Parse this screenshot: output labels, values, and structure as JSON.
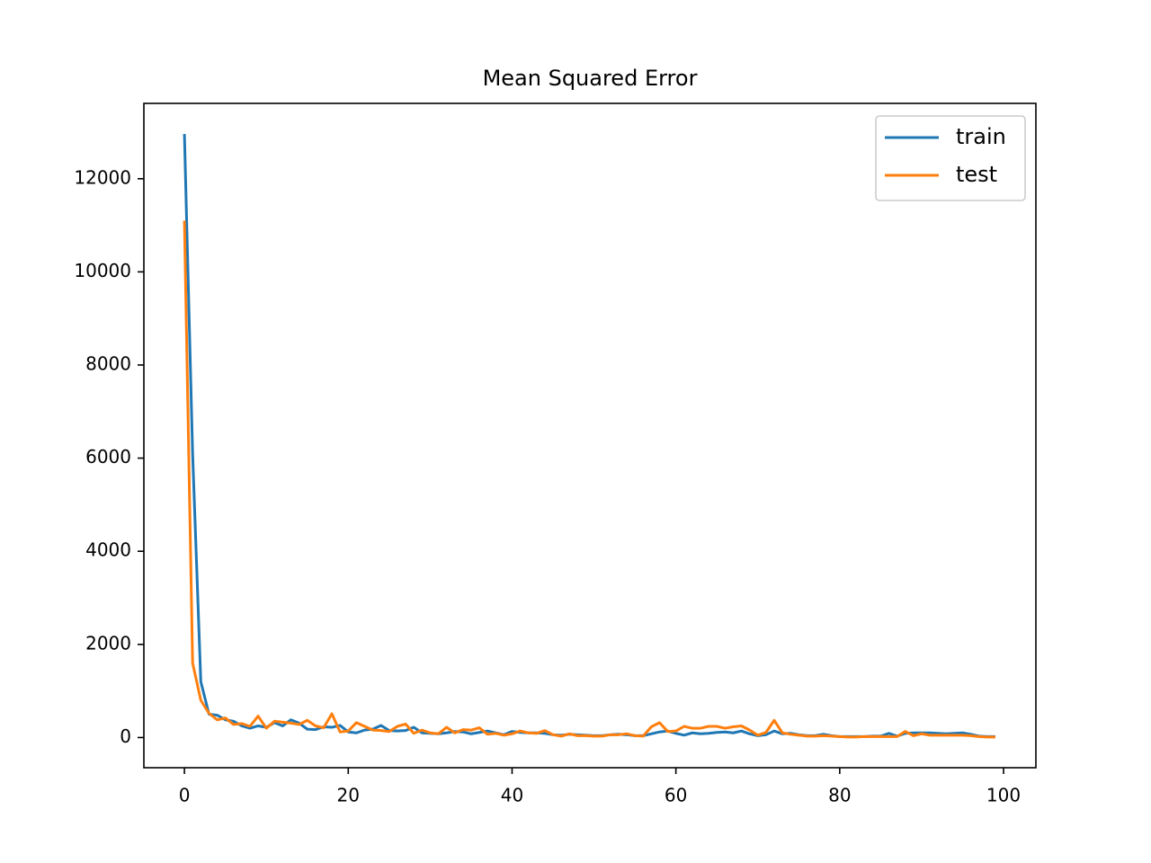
{
  "chart_data": {
    "type": "line",
    "title": "Mean Squared Error",
    "x": [
      0,
      1,
      2,
      3,
      4,
      5,
      6,
      7,
      8,
      9,
      10,
      11,
      12,
      13,
      14,
      15,
      16,
      17,
      18,
      19,
      20,
      21,
      22,
      23,
      24,
      25,
      26,
      27,
      28,
      29,
      30,
      31,
      32,
      33,
      34,
      35,
      36,
      37,
      38,
      39,
      40,
      41,
      42,
      43,
      44,
      45,
      46,
      47,
      48,
      49,
      50,
      51,
      52,
      53,
      54,
      55,
      56,
      57,
      58,
      59,
      60,
      61,
      62,
      63,
      64,
      65,
      66,
      67,
      68,
      69,
      70,
      71,
      72,
      73,
      74,
      75,
      76,
      77,
      78,
      79,
      80,
      81,
      82,
      83,
      84,
      85,
      86,
      87,
      88,
      89,
      90,
      91,
      92,
      93,
      94,
      95,
      96,
      97,
      98,
      99
    ],
    "series": [
      {
        "name": "train",
        "color": "#1f77b4",
        "values": [
          12960,
          6100,
          1200,
          500,
          480,
          380,
          350,
          250,
          200,
          250,
          220,
          320,
          250,
          380,
          310,
          180,
          170,
          230,
          220,
          260,
          120,
          100,
          160,
          180,
          260,
          150,
          140,
          150,
          220,
          100,
          90,
          80,
          100,
          130,
          120,
          80,
          110,
          140,
          100,
          60,
          130,
          110,
          100,
          100,
          90,
          60,
          50,
          70,
          60,
          50,
          40,
          40,
          60,
          70,
          60,
          40,
          40,
          80,
          120,
          140,
          90,
          50,
          100,
          80,
          90,
          110,
          120,
          100,
          140,
          80,
          40,
          60,
          140,
          80,
          90,
          60,
          40,
          40,
          70,
          40,
          20,
          20,
          20,
          20,
          30,
          30,
          90,
          30,
          90,
          100,
          100,
          100,
          90,
          80,
          90,
          100,
          70,
          30,
          20,
          20
        ]
      },
      {
        "name": "test",
        "color": "#ff7f0e",
        "values": [
          11100,
          1600,
          800,
          520,
          380,
          420,
          280,
          300,
          240,
          460,
          200,
          350,
          330,
          310,
          280,
          370,
          250,
          210,
          510,
          120,
          140,
          320,
          240,
          160,
          150,
          130,
          240,
          290,
          90,
          160,
          100,
          80,
          220,
          100,
          170,
          160,
          210,
          70,
          90,
          50,
          80,
          140,
          100,
          90,
          150,
          60,
          30,
          80,
          40,
          40,
          30,
          30,
          60,
          60,
          80,
          40,
          30,
          230,
          320,
          130,
          140,
          240,
          200,
          200,
          240,
          240,
          200,
          230,
          250,
          160,
          50,
          110,
          370,
          100,
          70,
          50,
          30,
          30,
          40,
          30,
          20,
          10,
          10,
          20,
          20,
          20,
          20,
          20,
          130,
          40,
          80,
          50,
          50,
          50,
          50,
          50,
          40,
          20,
          10,
          10
        ]
      }
    ],
    "xlim": [
      -4.95,
      103.95
    ],
    "xticks": [
      0,
      20,
      40,
      60,
      80,
      100
    ],
    "ylim": [
      -648,
      13618
    ],
    "yticks": [
      0,
      2000,
      4000,
      6000,
      8000,
      10000,
      12000
    ],
    "grid": false,
    "legend": "upper right"
  }
}
